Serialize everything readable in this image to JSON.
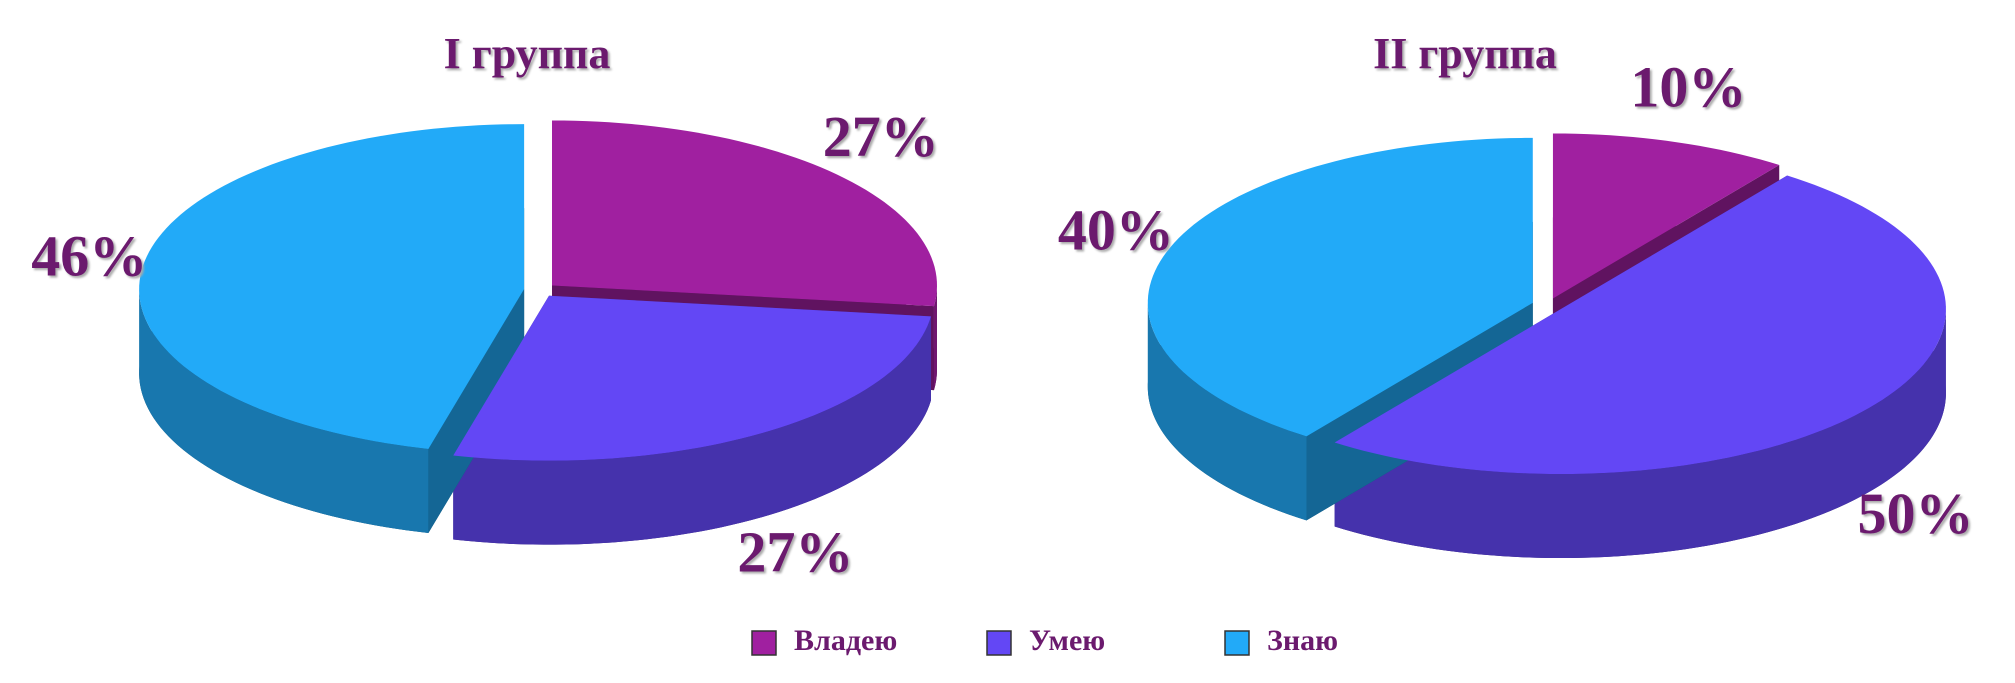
{
  "chart_data": [
    {
      "type": "pie",
      "title": "I группа",
      "categories": [
        "Владею",
        "Умею",
        "Знаю"
      ],
      "values": [
        27,
        27,
        46
      ],
      "value_labels": [
        "27%",
        "27%",
        "46%"
      ],
      "colors": [
        "#a020a0",
        "#6347f5",
        "#22aaf8"
      ],
      "legend": "bottom"
    },
    {
      "type": "pie",
      "title": "II группа",
      "categories": [
        "Владею",
        "Умею",
        "Знаю"
      ],
      "values": [
        10,
        50,
        40
      ],
      "value_labels": [
        "10%",
        "50%",
        "40%"
      ],
      "colors": [
        "#a020a0",
        "#6347f5",
        "#22aaf8"
      ],
      "legend": "bottom"
    }
  ]
}
